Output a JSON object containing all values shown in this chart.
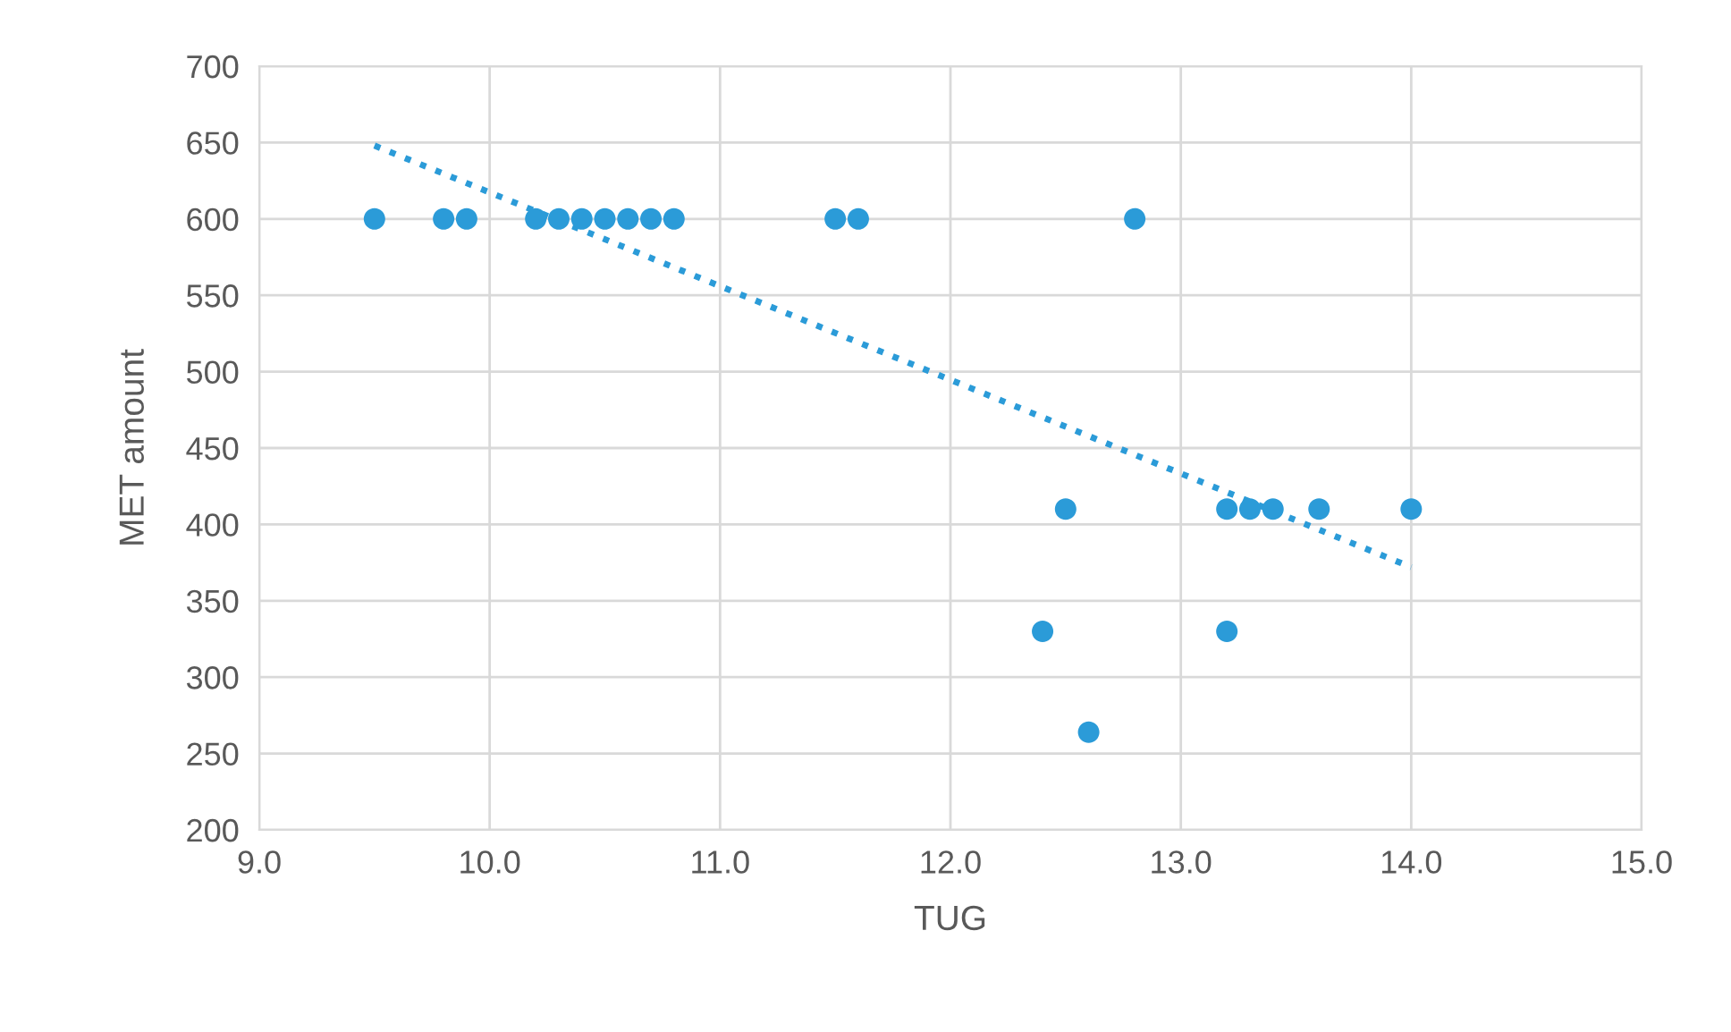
{
  "chart_data": {
    "type": "scatter",
    "xlabel": "TUG",
    "ylabel": "MET amount",
    "xlim": [
      9.0,
      15.0
    ],
    "xticks": [
      {
        "value": 9,
        "label": "9.0"
      },
      {
        "value": 10,
        "label": "10.0"
      },
      {
        "value": 11,
        "label": "11.0"
      },
      {
        "value": 12,
        "label": "12.0"
      },
      {
        "value": 13,
        "label": "13.0"
      },
      {
        "value": 14,
        "label": "14.0"
      },
      {
        "value": 15,
        "label": "15.0"
      }
    ],
    "ylim": [
      200,
      700
    ],
    "yticks": [
      200,
      250,
      300,
      350,
      400,
      450,
      500,
      550,
      600,
      650,
      700
    ],
    "grid": true,
    "marker": "circle",
    "series": [
      {
        "color": "#2b9bd8",
        "x": [
          9.5,
          9.8,
          9.9,
          10.2,
          10.3,
          10.4,
          10.5,
          10.6,
          10.7,
          10.8,
          11.5,
          11.6,
          12.8,
          12.5,
          13.2,
          13.3,
          13.4,
          13.6,
          14.0,
          12.4,
          13.2,
          12.6
        ],
        "values": [
          600,
          600,
          600,
          600,
          600,
          600,
          600,
          600,
          600,
          600,
          600,
          600,
          600,
          410,
          410,
          410,
          410,
          410,
          410,
          330,
          330,
          264
        ]
      },
      {
        "type": "line",
        "color": "#2b9bd8",
        "line_style": "dotted",
        "marker": "none",
        "x": [
          9.5,
          14.0
        ],
        "values": [
          648,
          372
        ]
      }
    ]
  }
}
